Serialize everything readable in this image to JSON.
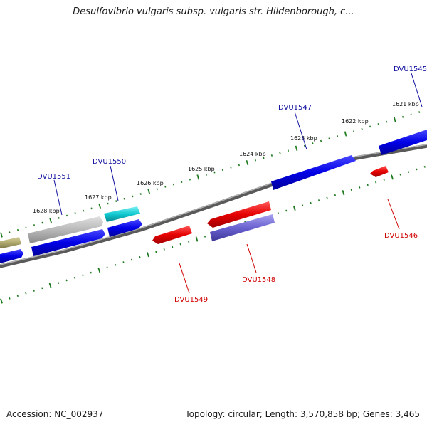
{
  "title": "Desulfovibrio vulgaris subsp. vulgaris str. Hildenborough, c...",
  "footer": {
    "accession": "Accession: NC_002937",
    "summary": "Topology: circular; Length: 3,570,858 bp; Genes: 3,465"
  },
  "colors": {
    "backbone": "#7a7a7a",
    "tick": "#1e7a1e",
    "forward_label": "#1010a0",
    "reverse_label": "#d00000",
    "blue_gene": "#0000e6",
    "red_gene": "#e60000",
    "gray_gene": "#b8b8b8",
    "cyan_gene": "#10c8d0",
    "olive_gene": "#b0aa70",
    "slate_gene": "#6a62d0"
  },
  "scale": {
    "kbp_labels": [
      "1621 kbp",
      "1622 kbp",
      "1623 kbp",
      "1624 kbp",
      "1625 kbp",
      "1626 kbp",
      "1627 kbp",
      "1628 kbp"
    ]
  },
  "genes_forward_labels": [
    {
      "id": "DVU1545",
      "label": "DVU1545"
    },
    {
      "id": "DVU1547",
      "label": "DVU1547"
    },
    {
      "id": "DVU1550",
      "label": "DVU1550"
    },
    {
      "id": "DVU1551",
      "label": "DVU1551"
    }
  ],
  "genes_reverse_labels": [
    {
      "id": "DVU1546",
      "label": "DVU1546"
    },
    {
      "id": "DVU1548",
      "label": "DVU1548"
    },
    {
      "id": "DVU1549",
      "label": "DVU1549"
    }
  ]
}
